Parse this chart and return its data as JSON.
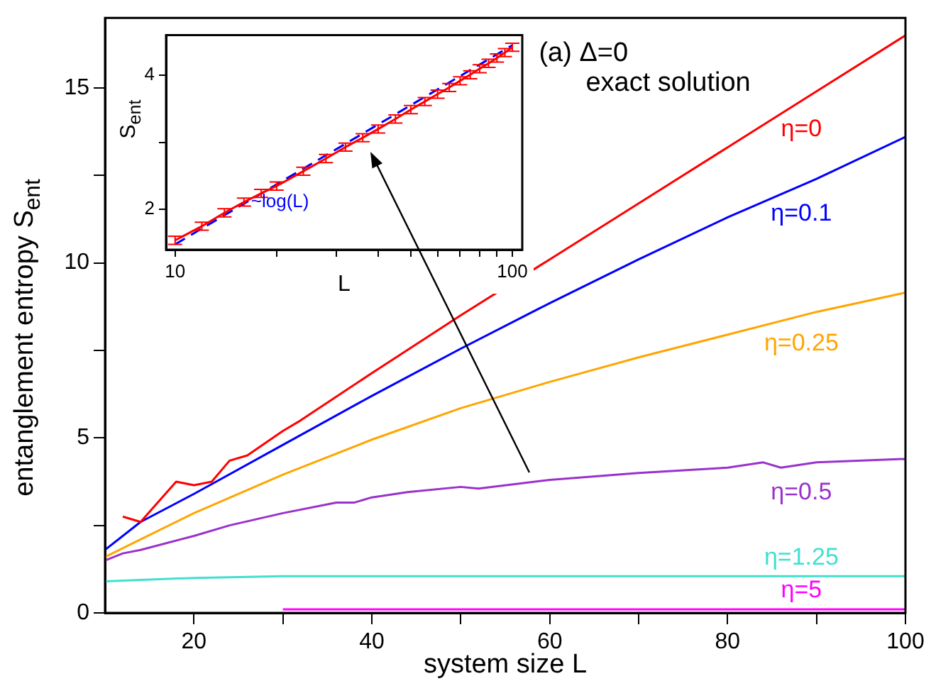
{
  "chart_data": [
    {
      "type": "line",
      "xlabel": "system size L",
      "ylabel": "entanglement entropy S$_{ent}$",
      "annotations": [
        "(a) Δ=0",
        "exact solution"
      ],
      "xlim": [
        10,
        100
      ],
      "ylim": [
        0,
        17
      ],
      "xticks": [
        20,
        {
          "value": 30,
          "label": null
        },
        40,
        {
          "value": 50,
          "label": null
        },
        60,
        {
          "value": 70,
          "label": null
        },
        80,
        {
          "value": 90,
          "label": null
        },
        100
      ],
      "yticks": [
        0,
        {
          "value": 2.5,
          "label": null
        },
        5,
        {
          "value": 7.5,
          "label": null
        },
        10,
        {
          "value": 12.5,
          "label": null
        },
        15
      ],
      "grid": false,
      "legend": false,
      "marker": "none",
      "series": [
        {
          "name": "η=0",
          "color": "#ff0000",
          "x": [
            12,
            14,
            18,
            20,
            22,
            24,
            26,
            30,
            32,
            40,
            50,
            60,
            70,
            80,
            90,
            100
          ],
          "values": [
            2.75,
            2.6,
            3.75,
            3.65,
            3.75,
            4.35,
            4.5,
            5.2,
            5.5,
            6.85,
            8.5,
            10.1,
            11.7,
            13.3,
            14.9,
            16.5
          ]
        },
        {
          "name": "η=0.1",
          "color": "#0000ff",
          "x": [
            10,
            14,
            20,
            30,
            40,
            50,
            60,
            70,
            80,
            90,
            100
          ],
          "values": [
            1.8,
            2.6,
            3.4,
            4.8,
            6.2,
            7.55,
            8.85,
            10.1,
            11.3,
            12.4,
            13.6
          ]
        },
        {
          "name": "η=0.25",
          "color": "#ffa500",
          "x": [
            10,
            20,
            30,
            40,
            50,
            60,
            70,
            80,
            90,
            100
          ],
          "values": [
            1.6,
            2.85,
            3.95,
            4.95,
            5.85,
            6.6,
            7.3,
            7.95,
            8.6,
            9.15
          ]
        },
        {
          "name": "η=0.5",
          "color": "#9932cc",
          "x": [
            10,
            12,
            14,
            20,
            24,
            30,
            36,
            38,
            40,
            44,
            50,
            52,
            60,
            70,
            80,
            84,
            86,
            90,
            100
          ],
          "values": [
            1.5,
            1.7,
            1.8,
            2.2,
            2.5,
            2.85,
            3.15,
            3.15,
            3.3,
            3.45,
            3.6,
            3.55,
            3.8,
            4.0,
            4.15,
            4.3,
            4.15,
            4.3,
            4.4
          ]
        },
        {
          "name": "η=1.25",
          "color": "#40e0d0",
          "x": [
            10,
            20,
            30,
            100
          ],
          "values": [
            0.9,
            1.0,
            1.05,
            1.05
          ]
        },
        {
          "name": "η=5",
          "color": "#ff00ff",
          "x": [
            30,
            100
          ],
          "values": [
            0.1,
            0.1
          ]
        }
      ]
    },
    {
      "type": "line",
      "xlabel": "L",
      "ylabel": "S$_{ent}$",
      "log": "x",
      "xlim": [
        9.4,
        107
      ],
      "ylim": [
        1.4,
        4.6
      ],
      "xticks": [
        10,
        {
          "value": 20,
          "label": null
        },
        {
          "value": 30,
          "label": null
        },
        {
          "value": 40,
          "label": null
        },
        {
          "value": 50,
          "label": null
        },
        {
          "value": 60,
          "label": null
        },
        {
          "value": 70,
          "label": null
        },
        {
          "value": 80,
          "label": null
        },
        {
          "value": 90,
          "label": null
        },
        100
      ],
      "yticks": [
        2,
        {
          "value": 3,
          "label": null
        },
        4
      ],
      "grid": false,
      "legend": false,
      "series": [
        {
          "color": "#ff0000",
          "x": [
            10,
            12,
            14,
            16,
            18,
            20,
            24,
            28,
            32,
            36,
            40,
            45,
            50,
            55,
            60,
            65,
            70,
            75,
            80,
            85,
            90,
            95,
            100
          ],
          "values": [
            1.54,
            1.75,
            1.95,
            2.11,
            2.24,
            2.35,
            2.57,
            2.76,
            2.93,
            3.07,
            3.2,
            3.35,
            3.49,
            3.61,
            3.72,
            3.82,
            3.92,
            4.01,
            4.1,
            4.18,
            4.26,
            4.34,
            4.42
          ],
          "errors": [
            0.06,
            0.06,
            0.06,
            0.06,
            0.06,
            0.06,
            0.06,
            0.06,
            0.06,
            0.06,
            0.06,
            0.06,
            0.06,
            0.06,
            0.06,
            0.06,
            0.06,
            0.06,
            0.06,
            0.06,
            0.06,
            0.06,
            0.06
          ]
        },
        {
          "name": "~log(L)",
          "color": "#0000ff",
          "line_style": "dashed",
          "x": [
            10,
            100
          ],
          "values": [
            1.48,
            4.45
          ]
        }
      ]
    }
  ]
}
